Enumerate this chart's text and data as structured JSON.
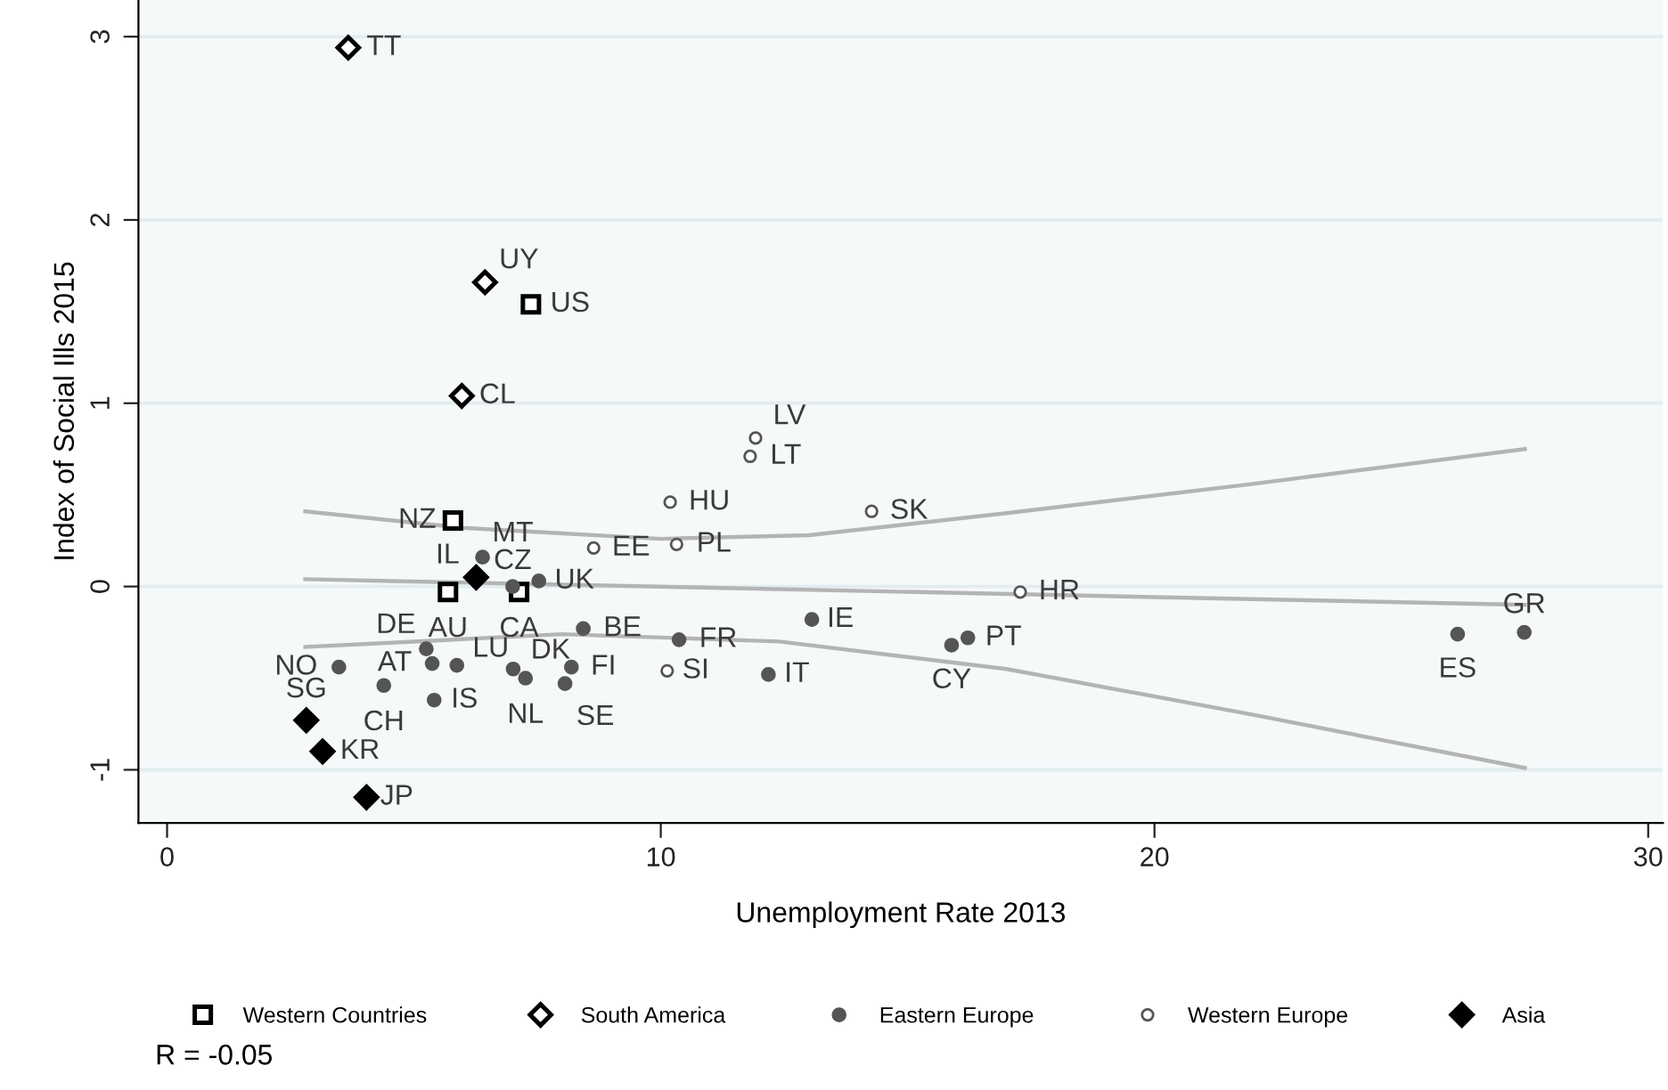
{
  "chart_data": {
    "type": "scatter",
    "xlabel": "Unemployment Rate 2013",
    "ylabel": "Index of Social Ills 2015",
    "xlim": [
      -0.58,
      30.3
    ],
    "ylim": [
      -1.29,
      3.2
    ],
    "xticks": [
      0,
      10,
      20,
      30
    ],
    "yticks": [
      -1,
      0,
      1,
      2,
      3
    ],
    "grid": "y",
    "legend": "bottom",
    "series": [
      {
        "name": "Western Countries",
        "color": "#000000",
        "marker": "square",
        "x": [
          7.37,
          5.79,
          5.69,
          7.13
        ],
        "values": [
          1.54,
          0.36,
          -0.03,
          -0.03
        ]
      },
      {
        "name": "South America",
        "color": "#000000",
        "marker": "diamond",
        "x": [
          3.67,
          6.44,
          5.97
        ],
        "values": [
          2.94,
          1.66,
          1.04
        ]
      },
      {
        "name": "Eastern Europe",
        "color": "#555555",
        "marker": "circle",
        "x": [
          6.39,
          7.0,
          7.53,
          5.25,
          5.37,
          5.87,
          3.48,
          4.39,
          5.41,
          7.01,
          7.26,
          8.19,
          8.06,
          8.43,
          10.37,
          12.18,
          13.06,
          15.89,
          16.22,
          26.14,
          27.49
        ],
        "values": [
          0.16,
          0.0,
          0.03,
          -0.34,
          -0.42,
          -0.43,
          -0.44,
          -0.54,
          -0.62,
          -0.45,
          -0.5,
          -0.44,
          -0.53,
          -0.23,
          -0.29,
          -0.48,
          -0.18,
          -0.32,
          -0.28,
          -0.26,
          -0.25
        ]
      },
      {
        "name": "Western Europe",
        "color": "#555555",
        "marker": "circle",
        "x": [
          11.92,
          11.81,
          10.19,
          14.27,
          8.64,
          10.32,
          17.28,
          10.13
        ],
        "values": [
          0.81,
          0.71,
          0.46,
          0.41,
          0.21,
          0.23,
          -0.03,
          -0.46
        ]
      },
      {
        "name": "Asia",
        "color": "#000000",
        "marker": "diamond",
        "x": [
          6.26,
          2.82,
          3.15,
          4.04
        ],
        "values": [
          0.05,
          -0.73,
          -0.9,
          -1.15
        ]
      },
      {
        "type": "line",
        "color": "#b4b4b4",
        "x": [
          2.8,
          6,
          10,
          13,
          17,
          22,
          27.5
        ],
        "values": [
          0.41,
          0.32,
          0.26,
          0.28,
          0.4,
          0.56,
          0.75
        ]
      },
      {
        "type": "line",
        "color": "#b4b4b4",
        "x": [
          2.8,
          27.5
        ],
        "values": [
          0.04,
          -0.1
        ]
      },
      {
        "type": "line",
        "color": "#b4b4b4",
        "x": [
          2.8,
          8,
          12.4,
          17,
          22,
          27.5
        ],
        "values": [
          -0.33,
          -0.26,
          -0.3,
          -0.45,
          -0.7,
          -0.99
        ]
      }
    ],
    "annotations": [
      {
        "text": "US",
        "x": 7.37,
        "y": 1.54
      },
      {
        "text": "NZ",
        "x": 5.79,
        "y": 0.36
      },
      {
        "text": "AU",
        "x": 5.69,
        "y": -0.03
      },
      {
        "text": "CA",
        "x": 7.13,
        "y": -0.03
      },
      {
        "text": "TT",
        "x": 3.67,
        "y": 2.94
      },
      {
        "text": "UY",
        "x": 6.44,
        "y": 1.66
      },
      {
        "text": "CL",
        "x": 5.97,
        "y": 1.04
      },
      {
        "text": "MT",
        "x": 6.39,
        "y": 0.16
      },
      {
        "text": "CZ",
        "x": 7.0,
        "y": 0.0
      },
      {
        "text": "UK",
        "x": 7.53,
        "y": 0.03
      },
      {
        "text": "DE",
        "x": 5.25,
        "y": -0.34
      },
      {
        "text": "AT",
        "x": 5.37,
        "y": -0.42
      },
      {
        "text": "LU",
        "x": 5.87,
        "y": -0.43
      },
      {
        "text": "NO",
        "x": 3.48,
        "y": -0.44
      },
      {
        "text": "CH",
        "x": 4.39,
        "y": -0.54
      },
      {
        "text": "IS",
        "x": 5.41,
        "y": -0.62
      },
      {
        "text": "DK",
        "x": 7.01,
        "y": -0.45
      },
      {
        "text": "NL",
        "x": 7.26,
        "y": -0.5
      },
      {
        "text": "FI",
        "x": 8.19,
        "y": -0.44
      },
      {
        "text": "SE",
        "x": 8.06,
        "y": -0.53
      },
      {
        "text": "BE",
        "x": 8.43,
        "y": -0.23
      },
      {
        "text": "FR",
        "x": 10.37,
        "y": -0.29
      },
      {
        "text": "IT",
        "x": 12.18,
        "y": -0.48
      },
      {
        "text": "IE",
        "x": 13.06,
        "y": -0.18
      },
      {
        "text": "CY",
        "x": 15.89,
        "y": -0.32
      },
      {
        "text": "PT",
        "x": 16.22,
        "y": -0.28
      },
      {
        "text": "ES",
        "x": 26.14,
        "y": -0.26
      },
      {
        "text": "GR",
        "x": 27.49,
        "y": -0.25
      },
      {
        "text": "LV",
        "x": 11.92,
        "y": 0.81
      },
      {
        "text": "LT",
        "x": 11.81,
        "y": 0.71
      },
      {
        "text": "HU",
        "x": 10.19,
        "y": 0.46
      },
      {
        "text": "SK",
        "x": 14.27,
        "y": 0.41
      },
      {
        "text": "EE",
        "x": 8.64,
        "y": 0.21
      },
      {
        "text": "PL",
        "x": 10.32,
        "y": 0.23
      },
      {
        "text": "HR",
        "x": 17.28,
        "y": -0.03
      },
      {
        "text": "SI",
        "x": 10.13,
        "y": -0.46
      },
      {
        "text": "IL",
        "x": 6.26,
        "y": 0.05
      },
      {
        "text": "SG",
        "x": 2.82,
        "y": -0.73
      },
      {
        "text": "KR",
        "x": 3.15,
        "y": -0.9
      },
      {
        "text": "JP",
        "x": 4.04,
        "y": -1.15
      },
      "R = -0.05"
    ]
  }
}
